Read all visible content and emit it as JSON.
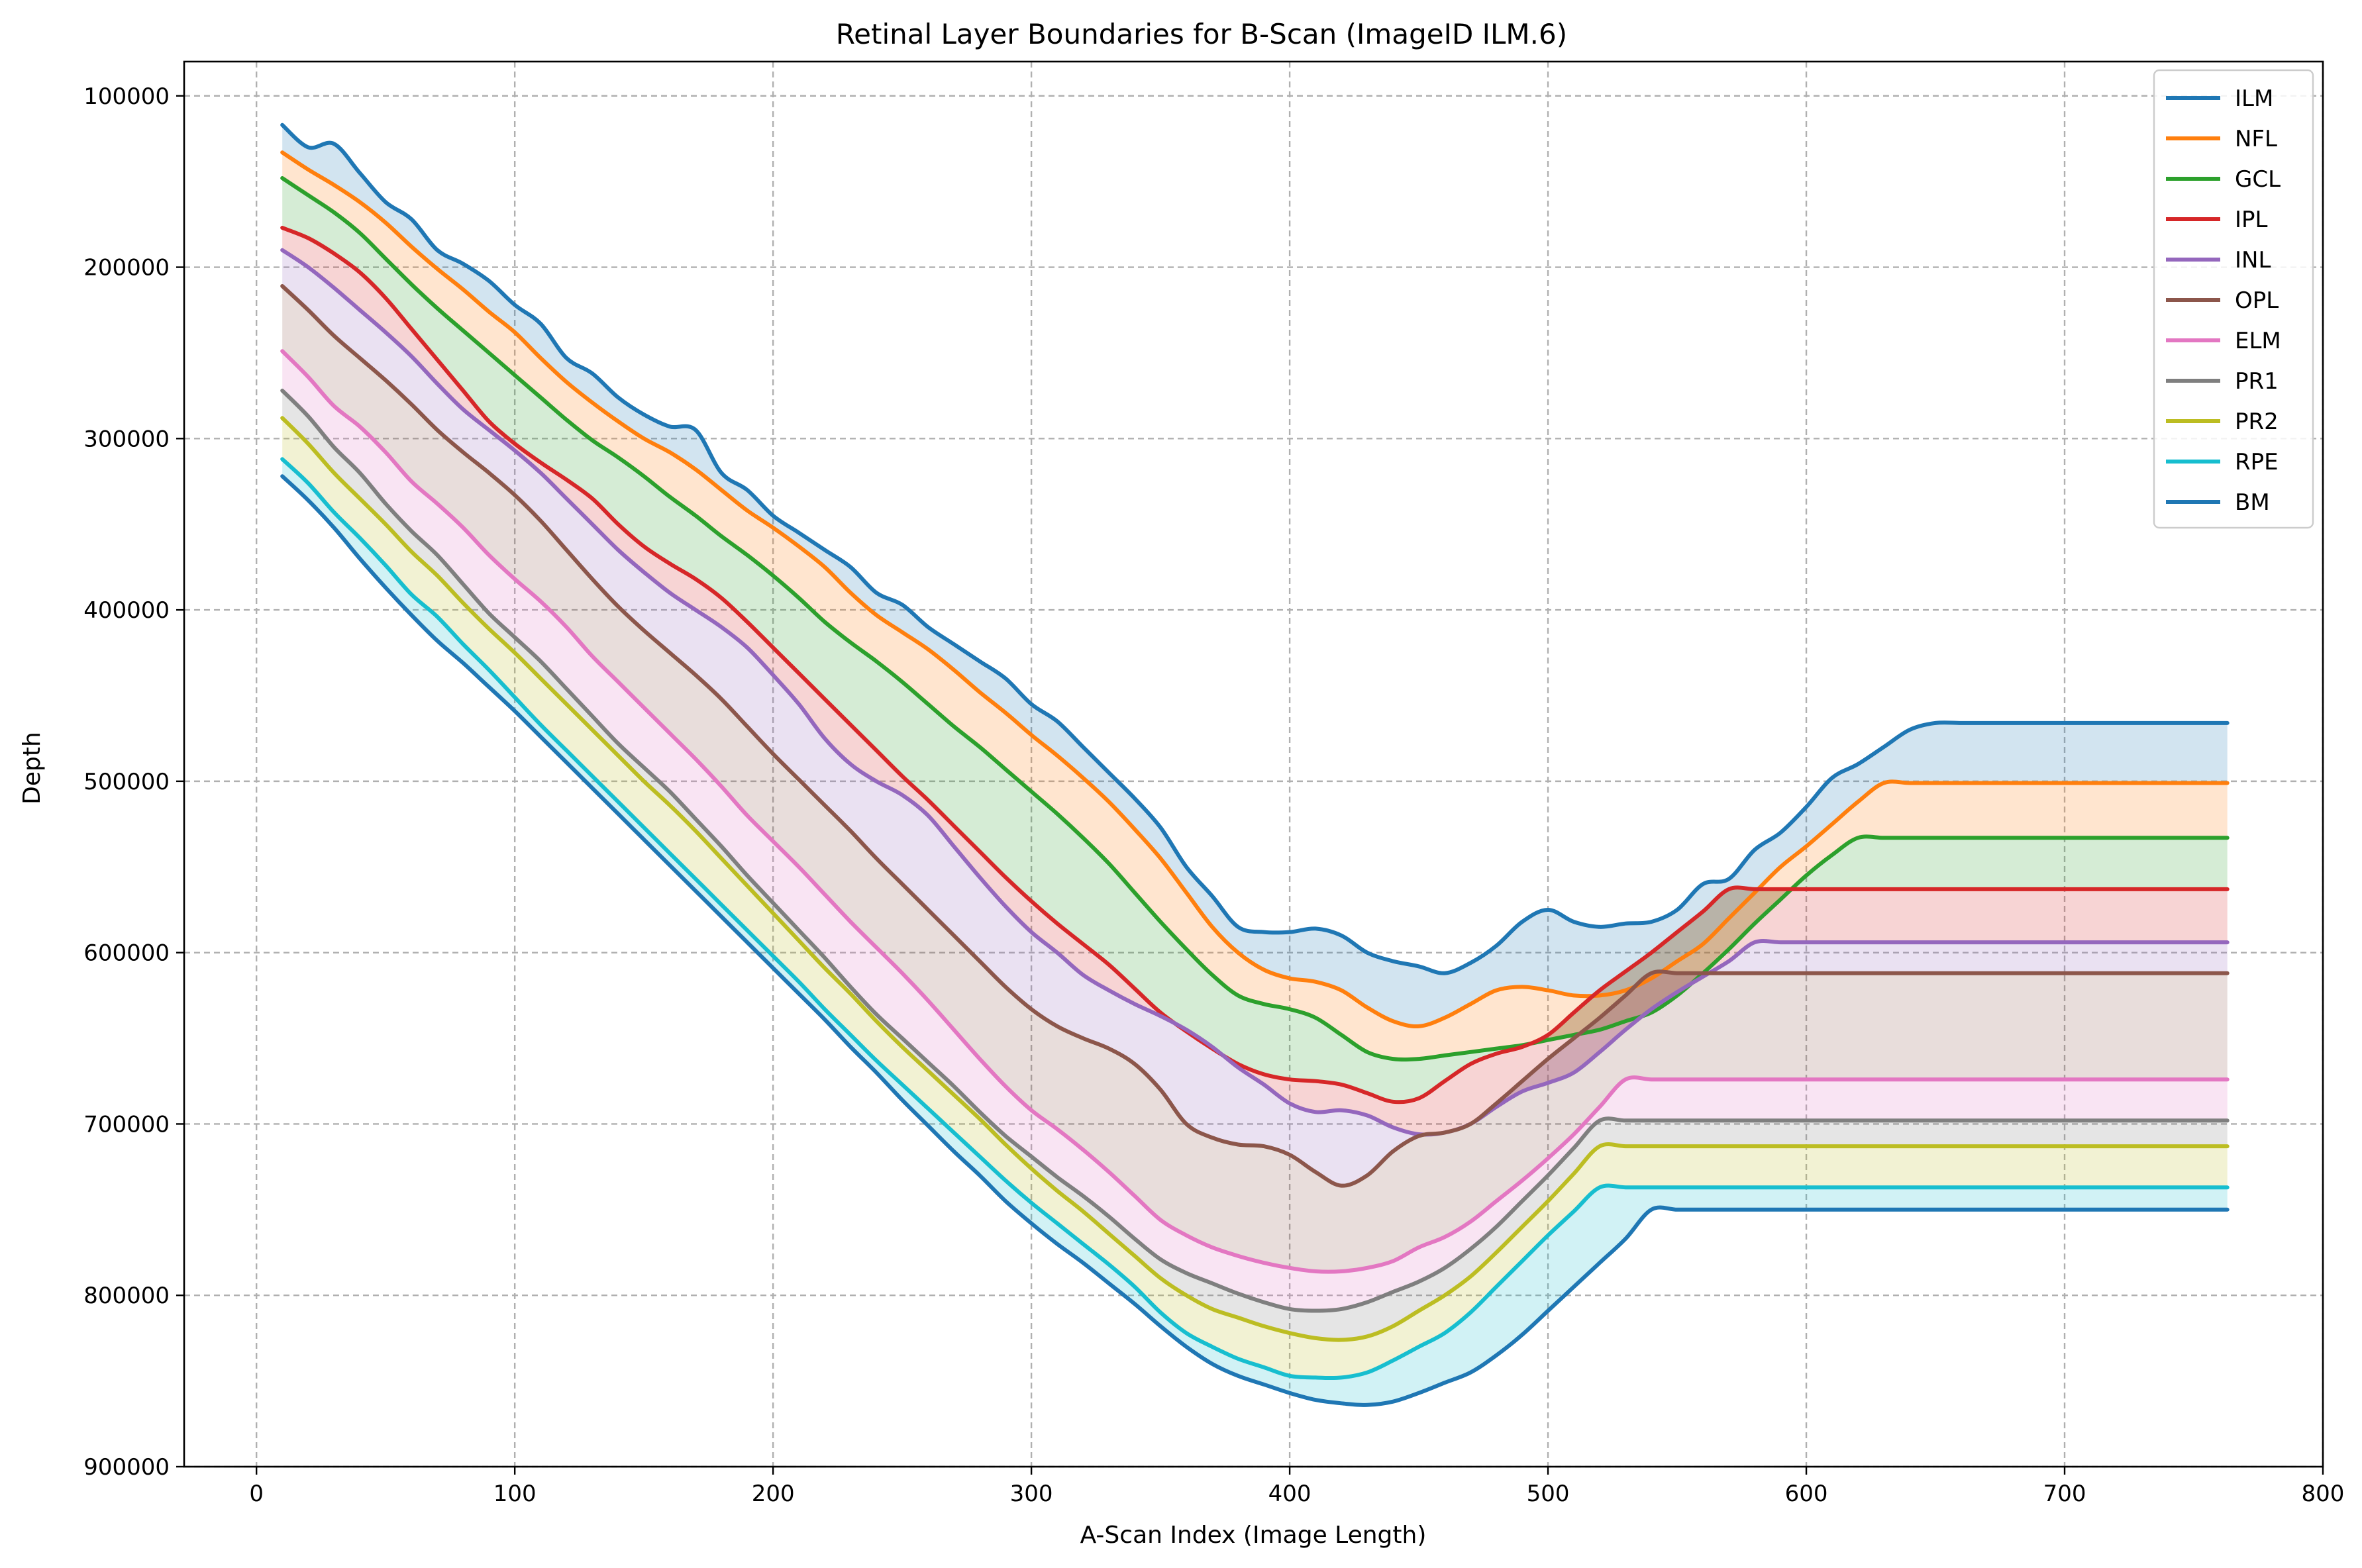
{
  "chart_data": {
    "type": "line",
    "title": "Retinal Layer Boundaries for B-Scan (ImageID ILM.6)",
    "xlabel": "A-Scan Index (Image Length)",
    "ylabel": "Depth",
    "xlim": [
      -28,
      800
    ],
    "ylim": [
      900000,
      80000
    ],
    "y_inverted": true,
    "x_ticks": [
      0,
      100,
      200,
      300,
      400,
      500,
      600,
      700,
      800
    ],
    "x_tick_labels": [
      "0",
      "100",
      "200",
      "300",
      "400",
      "500",
      "600",
      "700",
      "800"
    ],
    "y_ticks": [
      100000,
      200000,
      300000,
      400000,
      500000,
      600000,
      700000,
      800000,
      900000
    ],
    "y_tick_labels": [
      "100000",
      "200000",
      "300000",
      "400000",
      "500000",
      "600000",
      "700000",
      "800000",
      "900000"
    ],
    "grid": true,
    "legend_position": "top-right",
    "fill_between_consecutive_layers": true,
    "x": [
      10,
      20,
      30,
      40,
      50,
      60,
      70,
      80,
      90,
      100,
      110,
      120,
      130,
      140,
      150,
      160,
      170,
      180,
      190,
      200,
      210,
      220,
      230,
      240,
      250,
      260,
      270,
      280,
      290,
      300,
      310,
      320,
      330,
      340,
      350,
      360,
      370,
      380,
      390,
      400,
      410,
      420,
      430,
      440,
      450,
      460,
      470,
      480,
      490,
      500,
      510,
      520,
      530,
      540,
      550,
      560,
      570,
      580,
      590,
      600,
      610,
      620,
      630,
      640,
      650,
      660,
      670,
      680,
      690,
      700,
      710,
      720,
      730,
      740,
      750,
      763
    ],
    "series": [
      {
        "name": "ILM",
        "color": "#1f77b4",
        "values": [
          117000,
          130000,
          128000,
          145000,
          162000,
          172000,
          190000,
          198000,
          208000,
          222000,
          233000,
          253000,
          262000,
          276000,
          286000,
          293000,
          295000,
          320000,
          330000,
          345000,
          355000,
          365000,
          375000,
          390000,
          397000,
          410000,
          420000,
          430000,
          440000,
          455000,
          465000,
          480000,
          495000,
          510000,
          527000,
          550000,
          567000,
          585000,
          588000,
          588000,
          586000,
          590000,
          600000,
          605000,
          608000,
          612000,
          606000,
          596000,
          582000,
          575000,
          582000,
          585000,
          583000,
          582000,
          575000,
          560000,
          557000,
          540000,
          530000,
          515000,
          498000,
          490000,
          480000,
          470000,
          466000,
          466000,
          466000,
          466000,
          466000,
          466000,
          466000,
          466000,
          466000,
          466000,
          466000,
          466000
        ]
      },
      {
        "name": "NFL",
        "color": "#ff7f0e",
        "values": [
          133000,
          143000,
          152000,
          162000,
          174000,
          188000,
          201000,
          213000,
          226000,
          238000,
          253000,
          267000,
          279000,
          290000,
          300000,
          308000,
          318000,
          330000,
          342000,
          352000,
          363000,
          375000,
          390000,
          403000,
          413000,
          423000,
          435000,
          448000,
          460000,
          473000,
          485000,
          498000,
          512000,
          528000,
          545000,
          565000,
          585000,
          600000,
          610000,
          615000,
          617000,
          622000,
          632000,
          640000,
          643000,
          638000,
          630000,
          622000,
          620000,
          622000,
          625000,
          625000,
          622000,
          615000,
          605000,
          595000,
          580000,
          565000,
          550000,
          538000,
          525000,
          512000,
          501000,
          501000,
          501000,
          501000,
          501000,
          501000,
          501000,
          501000,
          501000,
          501000,
          501000,
          501000,
          501000,
          501000
        ]
      },
      {
        "name": "GCL",
        "color": "#2ca02c",
        "values": [
          148000,
          158000,
          168000,
          180000,
          195000,
          210000,
          224000,
          237000,
          250000,
          263000,
          276000,
          289000,
          301000,
          311000,
          322000,
          334000,
          345000,
          357000,
          368000,
          380000,
          393000,
          407000,
          419000,
          430000,
          442000,
          455000,
          468000,
          480000,
          493000,
          506000,
          519000,
          533000,
          548000,
          565000,
          582000,
          598000,
          613000,
          625000,
          630000,
          633000,
          638000,
          648000,
          658000,
          662000,
          662000,
          660000,
          658000,
          656000,
          654000,
          651000,
          648000,
          645000,
          640000,
          635000,
          625000,
          612000,
          598000,
          583000,
          569000,
          555000,
          543000,
          533000,
          533000,
          533000,
          533000,
          533000,
          533000,
          533000,
          533000,
          533000,
          533000,
          533000,
          533000,
          533000,
          533000,
          533000
        ]
      },
      {
        "name": "IPL",
        "color": "#d62728",
        "values": [
          177000,
          183000,
          192000,
          203000,
          218000,
          236000,
          254000,
          272000,
          290000,
          303000,
          314000,
          324000,
          335000,
          350000,
          363000,
          373000,
          382000,
          393000,
          407000,
          422000,
          437000,
          452000,
          467000,
          482000,
          497000,
          511000,
          526000,
          541000,
          556000,
          570000,
          583000,
          595000,
          607000,
          621000,
          635000,
          646000,
          656000,
          665000,
          671000,
          674000,
          675000,
          677000,
          682000,
          687000,
          685000,
          675000,
          665000,
          659000,
          655000,
          648000,
          635000,
          622000,
          611000,
          600000,
          588000,
          576000,
          563000,
          563000,
          563000,
          563000,
          563000,
          563000,
          563000,
          563000,
          563000,
          563000,
          563000,
          563000,
          563000,
          563000,
          563000,
          563000,
          563000,
          563000,
          563000,
          563000
        ]
      },
      {
        "name": "INL",
        "color": "#9467bd",
        "values": [
          190000,
          200000,
          212000,
          225000,
          238000,
          252000,
          268000,
          283000,
          295000,
          307000,
          320000,
          335000,
          350000,
          365000,
          378000,
          390000,
          400000,
          410000,
          422000,
          438000,
          455000,
          475000,
          490000,
          500000,
          508000,
          520000,
          538000,
          556000,
          573000,
          588000,
          600000,
          613000,
          622000,
          630000,
          637000,
          645000,
          655000,
          667000,
          677000,
          688000,
          693000,
          692000,
          695000,
          702000,
          706000,
          705000,
          700000,
          690000,
          681000,
          676000,
          670000,
          658000,
          645000,
          633000,
          623000,
          614000,
          605000,
          594000,
          594000,
          594000,
          594000,
          594000,
          594000,
          594000,
          594000,
          594000,
          594000,
          594000,
          594000,
          594000,
          594000,
          594000,
          594000,
          594000,
          594000,
          594000
        ]
      },
      {
        "name": "OPL",
        "color": "#8c564b",
        "values": [
          211000,
          225000,
          240000,
          253000,
          266000,
          280000,
          295000,
          308000,
          320000,
          333000,
          348000,
          365000,
          382000,
          398000,
          412000,
          425000,
          438000,
          452000,
          468000,
          484000,
          499000,
          514000,
          529000,
          545000,
          560000,
          575000,
          590000,
          605000,
          620000,
          633000,
          643000,
          650000,
          656000,
          665000,
          680000,
          700000,
          708000,
          712000,
          713000,
          718000,
          728000,
          736000,
          730000,
          716000,
          707000,
          705000,
          700000,
          688000,
          675000,
          662000,
          650000,
          638000,
          625000,
          612000,
          612000,
          612000,
          612000,
          612000,
          612000,
          612000,
          612000,
          612000,
          612000,
          612000,
          612000,
          612000,
          612000,
          612000,
          612000,
          612000,
          612000,
          612000,
          612000,
          612000,
          612000,
          612000
        ]
      },
      {
        "name": "ELM",
        "color": "#e377c2",
        "values": [
          249000,
          264000,
          281000,
          293000,
          308000,
          325000,
          338000,
          352000,
          368000,
          382000,
          395000,
          410000,
          427000,
          442000,
          457000,
          472000,
          487000,
          503000,
          520000,
          535000,
          550000,
          566000,
          582000,
          597000,
          612000,
          628000,
          645000,
          662000,
          678000,
          692000,
          703000,
          715000,
          728000,
          742000,
          756000,
          765000,
          772000,
          777000,
          781000,
          784000,
          786000,
          786000,
          784000,
          780000,
          772000,
          766000,
          757000,
          745000,
          733000,
          720000,
          706000,
          690000,
          674000,
          674000,
          674000,
          674000,
          674000,
          674000,
          674000,
          674000,
          674000,
          674000,
          674000,
          674000,
          674000,
          674000,
          674000,
          674000,
          674000,
          674000,
          674000,
          674000,
          674000,
          674000,
          674000,
          674000
        ]
      },
      {
        "name": "PR1",
        "color": "#7f7f7f",
        "values": [
          272000,
          287000,
          305000,
          320000,
          338000,
          354000,
          368000,
          385000,
          402000,
          416000,
          430000,
          446000,
          462000,
          478000,
          492000,
          506000,
          522000,
          538000,
          555000,
          571000,
          587000,
          603000,
          620000,
          636000,
          650000,
          664000,
          678000,
          693000,
          707000,
          719000,
          731000,
          742000,
          754000,
          767000,
          779000,
          787000,
          793000,
          799000,
          804000,
          808000,
          809000,
          808000,
          804000,
          798000,
          792000,
          784000,
          773000,
          760000,
          745000,
          730000,
          714000,
          698000,
          698000,
          698000,
          698000,
          698000,
          698000,
          698000,
          698000,
          698000,
          698000,
          698000,
          698000,
          698000,
          698000,
          698000,
          698000,
          698000,
          698000,
          698000,
          698000,
          698000,
          698000,
          698000,
          698000,
          698000
        ]
      },
      {
        "name": "PR2",
        "color": "#bcbd22",
        "values": [
          288000,
          303000,
          320000,
          335000,
          350000,
          366000,
          380000,
          396000,
          411000,
          425000,
          440000,
          455000,
          470000,
          485000,
          500000,
          514000,
          529000,
          545000,
          561000,
          577000,
          593000,
          609000,
          624000,
          640000,
          655000,
          669000,
          683000,
          697000,
          712000,
          726000,
          739000,
          751000,
          764000,
          777000,
          790000,
          800000,
          808000,
          813000,
          818000,
          822000,
          825000,
          826000,
          824000,
          818000,
          809000,
          800000,
          789000,
          775000,
          760000,
          745000,
          729000,
          713000,
          713000,
          713000,
          713000,
          713000,
          713000,
          713000,
          713000,
          713000,
          713000,
          713000,
          713000,
          713000,
          713000,
          713000,
          713000,
          713000,
          713000,
          713000,
          713000,
          713000,
          713000,
          713000,
          713000,
          713000
        ]
      },
      {
        "name": "RPE",
        "color": "#17becf",
        "values": [
          312000,
          326000,
          343000,
          358000,
          374000,
          391000,
          404000,
          420000,
          435000,
          451000,
          467000,
          482000,
          497000,
          512000,
          527000,
          542000,
          557000,
          572000,
          587000,
          602000,
          617000,
          633000,
          648000,
          663000,
          677000,
          691000,
          705000,
          719000,
          733000,
          746000,
          758000,
          770000,
          782000,
          795000,
          810000,
          822000,
          830000,
          837000,
          842000,
          847000,
          848000,
          848000,
          845000,
          838000,
          830000,
          822000,
          810000,
          795000,
          780000,
          765000,
          751000,
          737000,
          737000,
          737000,
          737000,
          737000,
          737000,
          737000,
          737000,
          737000,
          737000,
          737000,
          737000,
          737000,
          737000,
          737000,
          737000,
          737000,
          737000,
          737000,
          737000,
          737000,
          737000,
          737000,
          737000,
          737000
        ]
      },
      {
        "name": "BM",
        "color": "#1f77b4",
        "values": [
          322000,
          336000,
          352000,
          370000,
          387000,
          403000,
          418000,
          431000,
          445000,
          459000,
          474000,
          489000,
          504000,
          519000,
          534000,
          549000,
          564000,
          579000,
          594000,
          609000,
          624000,
          639000,
          655000,
          670000,
          686000,
          701000,
          716000,
          730000,
          745000,
          758000,
          770000,
          781000,
          793000,
          805000,
          818000,
          830000,
          840000,
          847000,
          852000,
          857000,
          861000,
          863000,
          864000,
          862000,
          857000,
          851000,
          845000,
          835000,
          823000,
          809000,
          795000,
          781000,
          767000,
          750000,
          750000,
          750000,
          750000,
          750000,
          750000,
          750000,
          750000,
          750000,
          750000,
          750000,
          750000,
          750000,
          750000,
          750000,
          750000,
          750000,
          750000,
          750000,
          750000,
          750000,
          750000,
          750000
        ]
      }
    ]
  }
}
